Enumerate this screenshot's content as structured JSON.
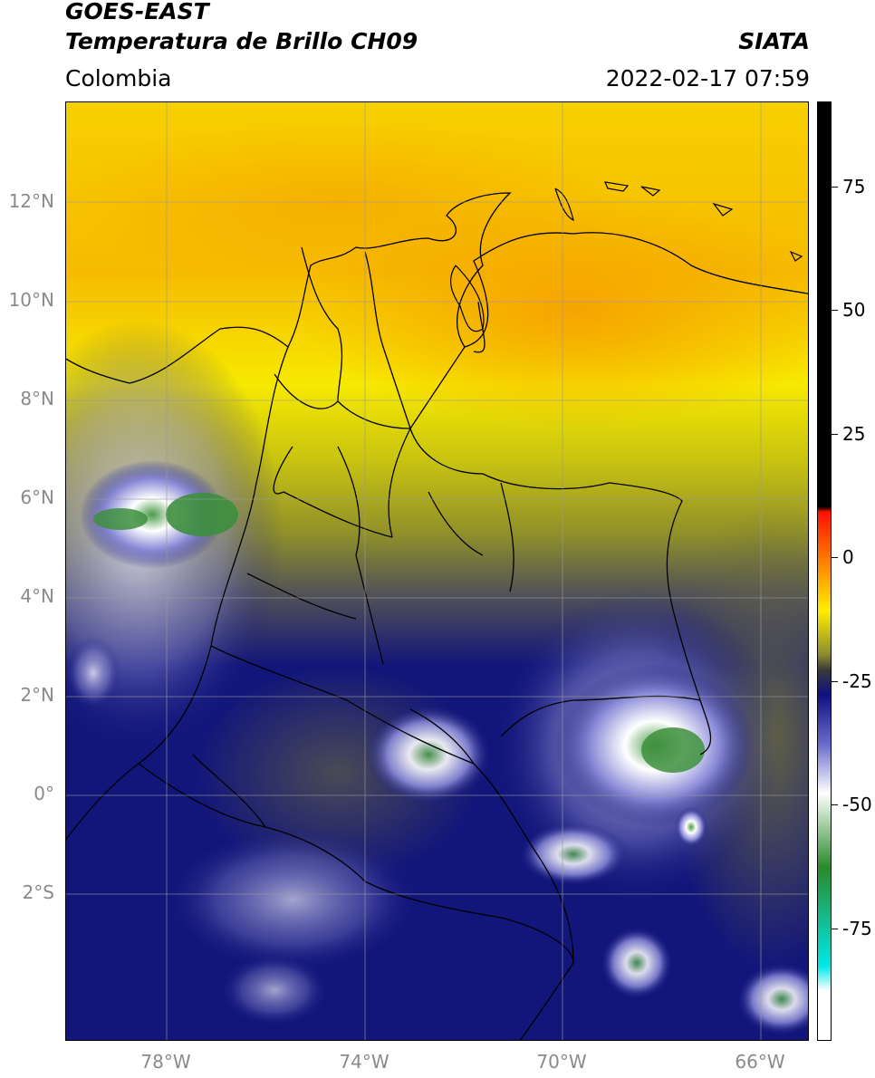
{
  "header": {
    "title_line1": "GOES-EAST",
    "title_line2": "Temperatura de Brillo CH09",
    "brand": "SIATA",
    "region": "Colombia",
    "timestamp": "2022-02-17 07:59"
  },
  "map": {
    "lat_labels": [
      "12°N",
      "10°N",
      "8°N",
      "6°N",
      "4°N",
      "2°N",
      "0°",
      "2°S"
    ],
    "lon_labels": [
      "78°W",
      "74°W",
      "70°W",
      "66°W"
    ],
    "colors": {
      "warm_orange": "#f6a800",
      "warm_yellow": "#f7e900",
      "olive": "#8f8f2a",
      "grey": "#555555",
      "navy": "#12157a",
      "white_cloud": "#e8e8f6",
      "green_core": "#3d8f3d"
    }
  },
  "colorbar": {
    "labels": [
      "75",
      "50",
      "25",
      "0",
      "-25",
      "-50",
      "-75"
    ],
    "stops": [
      {
        "value": 90,
        "color": "#000000"
      },
      {
        "value": 8,
        "color": "#000000"
      },
      {
        "value": 7,
        "color": "#ff1000"
      },
      {
        "value": -13,
        "color": "#ffee00"
      },
      {
        "value": -22,
        "color": "#8a8a2e"
      },
      {
        "value": -25,
        "color": "#3a3a3a"
      },
      {
        "value": -30,
        "color": "#101080"
      },
      {
        "value": -40,
        "color": "#6a6acc"
      },
      {
        "value": -50,
        "color": "#ffffff"
      },
      {
        "value": -65,
        "color": "#2a8a2a"
      },
      {
        "value": -85,
        "color": "#00e8e8"
      },
      {
        "value": -90,
        "color": "#ffffff"
      }
    ]
  }
}
